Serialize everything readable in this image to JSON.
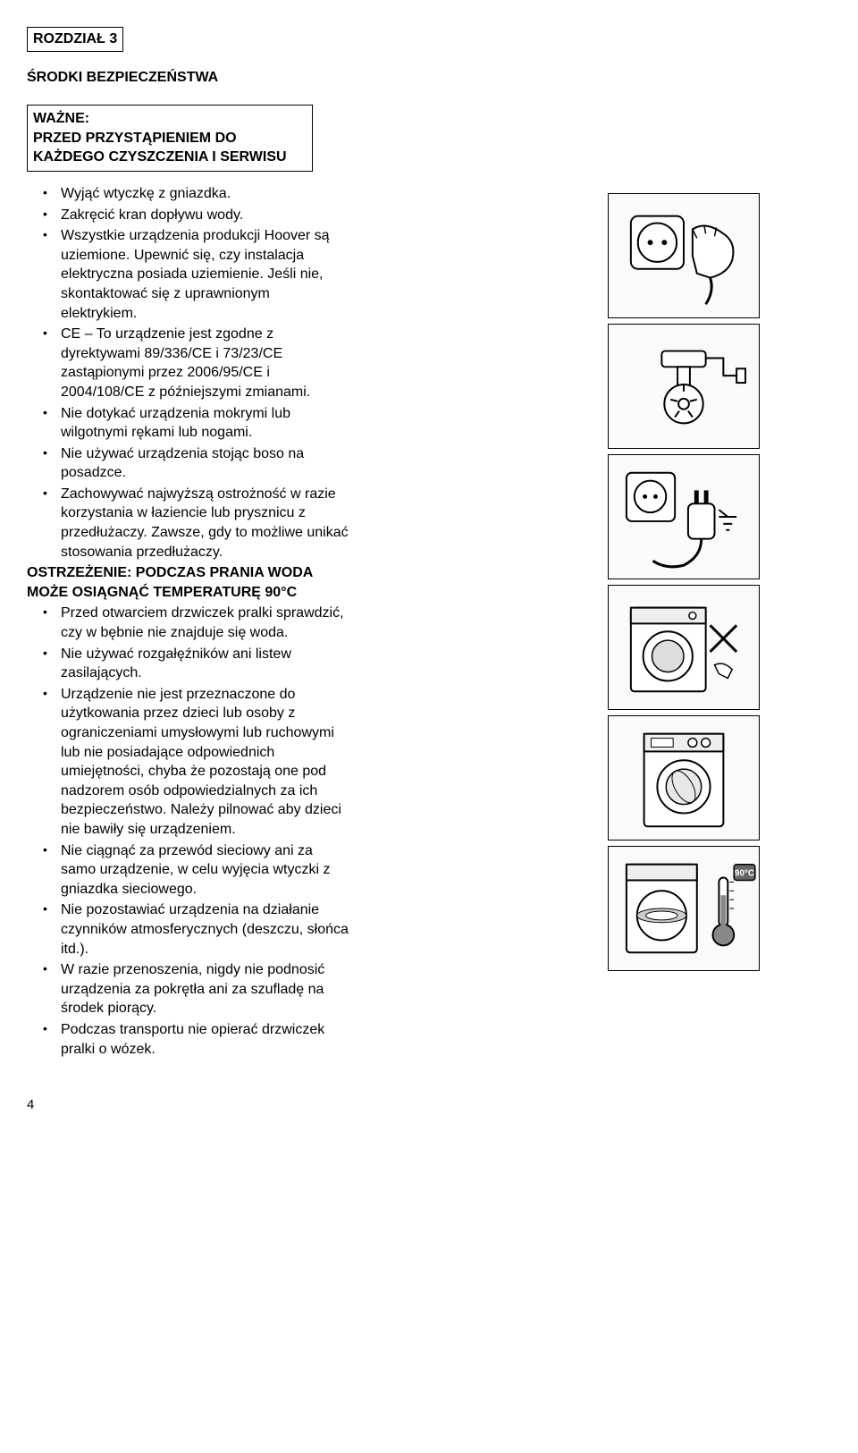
{
  "chapter_label": "ROZDZIAŁ 3",
  "section_heading": "ŚRODKI BEZPIECZEŃSTWA",
  "notice_box": "WAŻNE:\nPRZED PRZYSTĄPIENIEM DO KAŻDEGO CZYSZCZENIA I SERWISU",
  "bullets_pre": [
    "Wyjąć wtyczkę z gniazdka.",
    "Zakręcić kran dopływu wody.",
    "Wszystkie urządzenia produkcji Hoover są uziemione. Upewnić się, czy instalacja elektryczna posiada uziemienie. Jeśli nie, skontaktować się z uprawnionym elektrykiem.",
    "CE – To urządzenie jest zgodne z dyrektywami 89/336/CE i 73/23/CE zastąpionymi przez 2006/95/CE i 2004/108/CE z późniejszymi zmianami.",
    "Nie dotykać urządzenia mokrymi lub wilgotnymi rękami lub nogami.",
    "Nie używać urządzenia stojąc boso na posadzce.",
    "Zachowywać najwyższą ostrożność w razie korzystania w łaziencie lub prysznicu z przedłużaczy. Zawsze, gdy to możliwe unikać stosowania przedłużaczy."
  ],
  "warning_inline": "OSTRZEŻENIE:    PODCZAS PRANIA WODA MOŻE OSIĄGNĄĆ TEMPERATURĘ 90°C",
  "bullets_post": [
    "Przed otwarciem drzwiczek pralki sprawdzić, czy w bębnie nie znajduje się woda.",
    "Nie używać rozgałęźników ani listew zasilających.",
    "Urządzenie nie jest przeznaczone do użytkowania przez dzieci lub osoby z ograniczeniami umysłowymi lub ruchowymi lub nie posiadające odpowiednich umiejętności, chyba że pozostają one pod nadzorem osób odpowiedzialnych za ich bezpieczeństwo. Należy pilnować aby dzieci nie bawiły się urządzeniem.",
    "Nie ciągnąć za przewód sieciowy ani za samo urządzenie, w celu wyjęcia wtyczki z gniazdka sieciowego.",
    "Nie pozostawiać urządzenia na działanie czynników atmosferycznych (deszczu, słońca itd.).",
    "W razie przenoszenia, nigdy nie podnosić urządzenia za pokrętła ani za szufladę na środek piorący.",
    "Podczas transportu nie opierać drzwiczek pralki o wózek."
  ],
  "page_number": "4",
  "illustrations": [
    {
      "name": "socket-unplug-illustration",
      "type": "socket-hand"
    },
    {
      "name": "water-tap-illustration",
      "type": "tap"
    },
    {
      "name": "plug-ground-illustration",
      "type": "plug"
    },
    {
      "name": "washer-no-touch-illustration",
      "type": "washer-no"
    },
    {
      "name": "washer-door-illustration",
      "type": "washer-door"
    },
    {
      "name": "washer-temp-illustration",
      "type": "washer-temp"
    }
  ],
  "colors": {
    "text": "#000000",
    "background": "#ffffff",
    "border": "#000000",
    "illus_bg": "#fafafa"
  }
}
